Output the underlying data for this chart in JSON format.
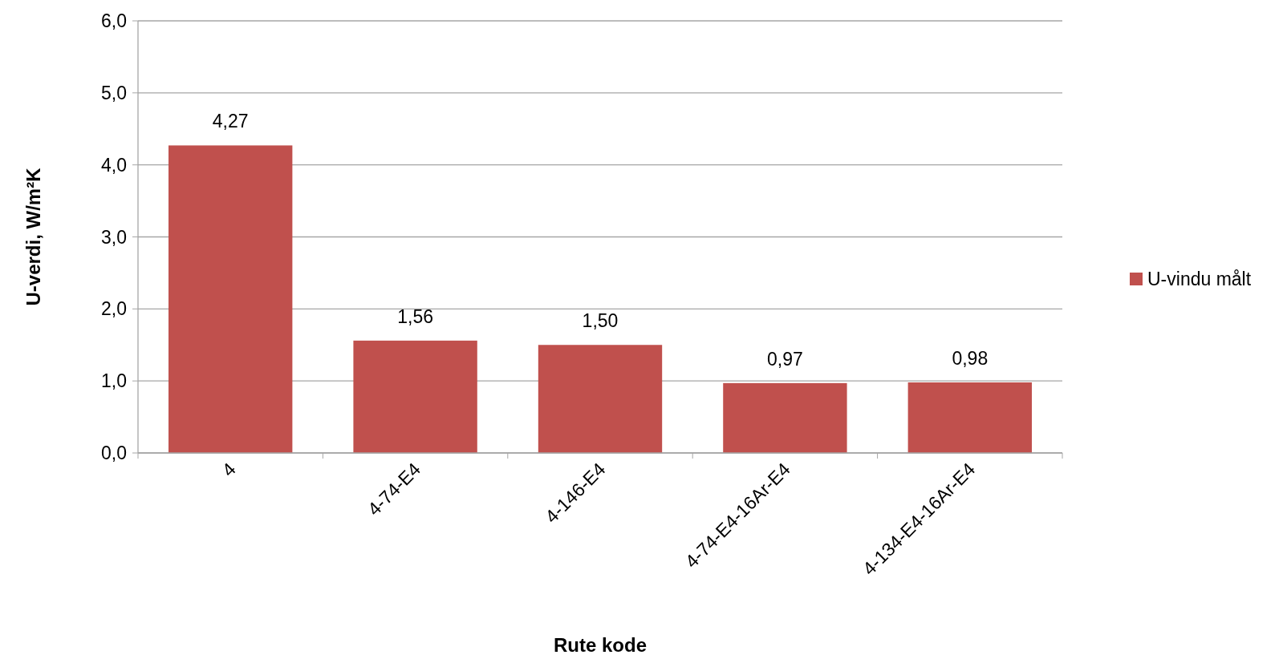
{
  "chart_data": {
    "type": "bar",
    "xlabel": "Rute kode",
    "ylabel": "U-verdi, W/m²K",
    "categories": [
      "4",
      "4-74-E4",
      "4-146-E4",
      "4-74-E4-16Ar-E4",
      "4-134-E4-16Ar-E4"
    ],
    "series": [
      {
        "name": "U-vindu målt",
        "color": "#c0504d",
        "values": [
          4.27,
          1.56,
          1.5,
          0.97,
          0.98
        ],
        "value_labels": [
          "4,27",
          "1,56",
          "1,50",
          "0,97",
          "0,98"
        ]
      }
    ],
    "ylim": [
      0,
      6
    ],
    "yticks": [
      {
        "value": 0,
        "label": "0,0"
      },
      {
        "value": 1,
        "label": "1,0"
      },
      {
        "value": 2,
        "label": "2,0"
      },
      {
        "value": 3,
        "label": "3,0"
      },
      {
        "value": 4,
        "label": "4,0"
      },
      {
        "value": 5,
        "label": "5,0"
      },
      {
        "value": 6,
        "label": "6,0"
      }
    ],
    "grid": "y",
    "legend": "right"
  }
}
